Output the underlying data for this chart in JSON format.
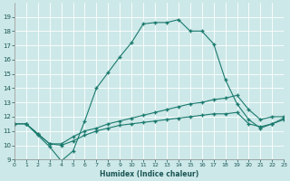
{
  "xlabel": "Humidex (Indice chaleur)",
  "xlim": [
    0,
    23
  ],
  "ylim": [
    9,
    20
  ],
  "yticks": [
    9,
    10,
    11,
    12,
    13,
    14,
    15,
    16,
    17,
    18,
    19
  ],
  "xticks": [
    0,
    1,
    2,
    3,
    4,
    5,
    6,
    7,
    8,
    9,
    10,
    11,
    12,
    13,
    14,
    15,
    16,
    17,
    18,
    19,
    20,
    21,
    22,
    23
  ],
  "bg_color": "#cde8e8",
  "grid_color": "#ffffff",
  "line_color": "#1a7a6e",
  "marker": "+",
  "line1_x": [
    1,
    2,
    3,
    4,
    5,
    6,
    7,
    8,
    9,
    10,
    11,
    12,
    13,
    14,
    15,
    16,
    17,
    18,
    19,
    20,
    21,
    22,
    23
  ],
  "line1_y": [
    11.5,
    10.7,
    9.9,
    8.9,
    9.6,
    11.7,
    14.0,
    15.1,
    16.2,
    17.2,
    18.5,
    18.6,
    18.6,
    18.8,
    18.0,
    18.0,
    17.1,
    14.6,
    12.9,
    11.8,
    11.2,
    11.5,
    11.9
  ],
  "line2_x": [
    0,
    1,
    2,
    3,
    4,
    5,
    6,
    7,
    8,
    9,
    10,
    11,
    12,
    13,
    14,
    15,
    16,
    17,
    18,
    19,
    20,
    21,
    22,
    23
  ],
  "line2_y": [
    11.5,
    11.5,
    10.8,
    10.1,
    10.1,
    10.6,
    11.0,
    11.2,
    11.5,
    11.7,
    11.9,
    12.1,
    12.3,
    12.5,
    12.7,
    12.9,
    13.0,
    13.2,
    13.3,
    13.5,
    12.5,
    11.8,
    12.0,
    12.0
  ],
  "line3_x": [
    0,
    1,
    2,
    3,
    4,
    5,
    6,
    7,
    8,
    9,
    10,
    11,
    12,
    13,
    14,
    15,
    16,
    17,
    18,
    19,
    20,
    21,
    22,
    23
  ],
  "line3_y": [
    11.5,
    11.5,
    10.8,
    10.1,
    10.0,
    10.3,
    10.7,
    11.0,
    11.2,
    11.4,
    11.5,
    11.6,
    11.7,
    11.8,
    11.9,
    12.0,
    12.1,
    12.2,
    12.2,
    12.3,
    11.5,
    11.3,
    11.5,
    11.8
  ]
}
